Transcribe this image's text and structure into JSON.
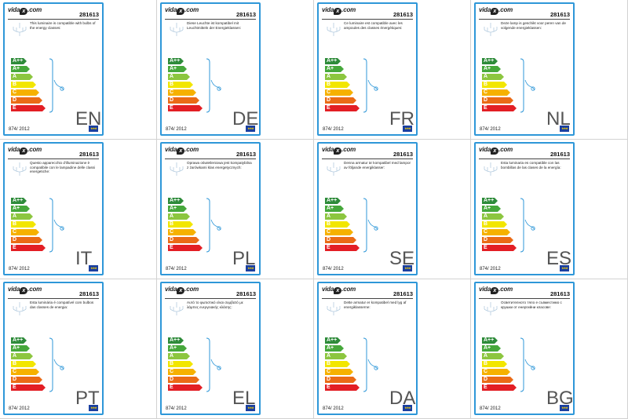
{
  "brand": "vida",
  "brand_suffix": ".com",
  "product_code": "281613",
  "regulation": "874/ 2012",
  "energy_classes": [
    {
      "label": "A++",
      "color": "#2e8b3a"
    },
    {
      "label": "A+",
      "color": "#46a83b"
    },
    {
      "label": "A",
      "color": "#8cc63f"
    },
    {
      "label": "B",
      "color": "#f2e600"
    },
    {
      "label": "C",
      "color": "#f6b100"
    },
    {
      "label": "D",
      "color": "#ea6b16"
    },
    {
      "label": "E",
      "color": "#e31e24"
    }
  ],
  "labels": [
    {
      "lang": "EN",
      "text": "This luminaire is compatible with bulbs of the energy classes:"
    },
    {
      "lang": "DE",
      "text": "Diese Leuchte ist kompatibel mit Leuchtmitteln der Energieklassen:"
    },
    {
      "lang": "FR",
      "text": "Ce luminaire est compatible avec les ampoules des classes énergétiques:"
    },
    {
      "lang": "NL",
      "text": "Deze lamp is geschikt voor peren van de volgende energieklassen:"
    },
    {
      "lang": "IT",
      "text": "Questo apparecchio d'illuminazione è compatibile con le lampadine delle classi energetiche:"
    },
    {
      "lang": "PL",
      "text": "Oprawa oświetleniowa jest kompatybilna z żarówkami klas energetycznych:"
    },
    {
      "lang": "SE",
      "text": "Denna armatur är kompatibel med lampor av följande energiklasser:"
    },
    {
      "lang": "ES",
      "text": "Esta luminaria es compatible con las bombillas de las clases de la energía:"
    },
    {
      "lang": "PT",
      "text": "Esta luminária é compatível com bulbos das classes de energia:"
    },
    {
      "lang": "EL",
      "text": "Αυτό το φωτιστικό είναι συμβατό με λάμπες ενεργειακής κλάσης:"
    },
    {
      "lang": "DA",
      "text": "Dette armatur er kompatibel med lyg af energiklasserne:"
    },
    {
      "lang": "BG",
      "text": "Осветителното тяло е съвместимо с крушки от енергийни класове:"
    }
  ]
}
